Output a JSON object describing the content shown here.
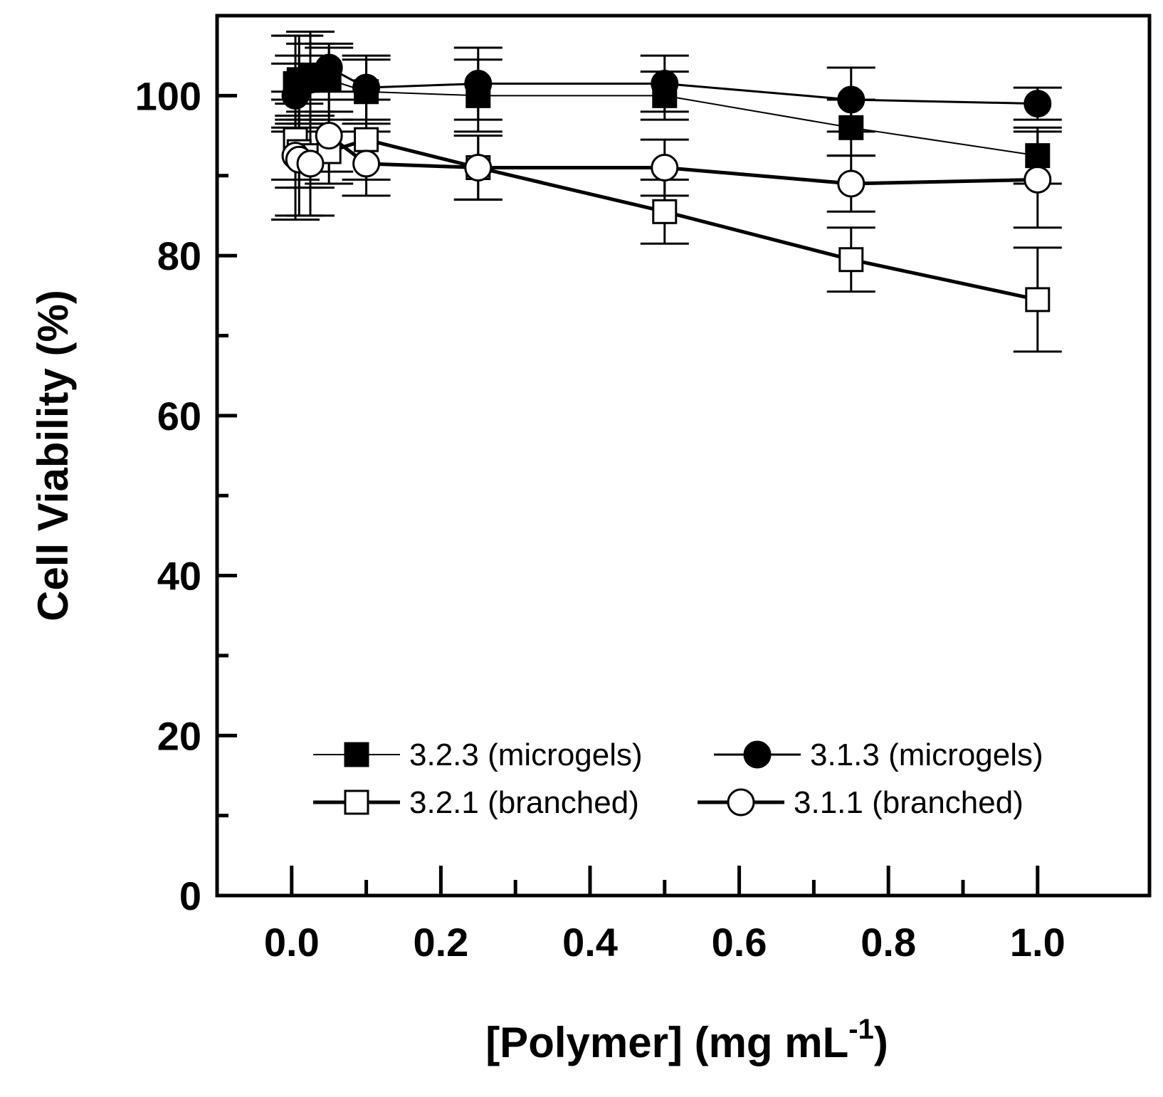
{
  "chart_data": {
    "type": "line",
    "title": "",
    "xlabel": "[Polymer] (mg mL",
    "xlabel_superscript": "-1",
    "xlabel_suffix": ")",
    "ylabel": "Cell Viability (%)",
    "xlim": [
      -0.1,
      1.15
    ],
    "ylim": [
      0,
      110
    ],
    "x_ticks": [
      0.0,
      0.2,
      0.4,
      0.6,
      0.8,
      1.0
    ],
    "x_tick_labels": [
      "0.0",
      "0.2",
      "0.4",
      "0.6",
      "0.8",
      "1.0"
    ],
    "y_ticks": [
      0,
      20,
      40,
      60,
      80,
      100
    ],
    "y_tick_labels": [
      "0",
      "20",
      "40",
      "60",
      "80",
      "100"
    ],
    "grid": false,
    "legend_position": "bottom-center",
    "series": [
      {
        "name": "3.2.3 (microgels)",
        "marker": "filled-square",
        "line": "thin",
        "x": [
          0.005,
          0.01,
          0.025,
          0.05,
          0.1,
          0.25,
          0.5,
          0.75,
          1.0
        ],
        "y": [
          101.5,
          102.0,
          102.5,
          102.0,
          100.5,
          100.0,
          100.0,
          96.0,
          92.5
        ],
        "err": [
          6.0,
          5.5,
          5.5,
          4.0,
          4.0,
          4.5,
          3.0,
          3.5,
          3.5
        ]
      },
      {
        "name": "3.1.3 (microgels)",
        "marker": "filled-circle",
        "line": "medium",
        "x": [
          0.005,
          0.01,
          0.025,
          0.05,
          0.1,
          0.25,
          0.5,
          0.75,
          1.0
        ],
        "y": [
          100.0,
          101.0,
          102.0,
          103.5,
          101.0,
          101.5,
          101.5,
          99.5,
          99.0
        ],
        "err": [
          4.0,
          4.0,
          4.5,
          3.0,
          4.0,
          4.5,
          3.5,
          4.0,
          2.0
        ]
      },
      {
        "name": "3.2.1 (branched)",
        "marker": "open-square",
        "line": "thick",
        "x": [
          0.005,
          0.01,
          0.025,
          0.05,
          0.1,
          0.25,
          0.5,
          0.75,
          1.0
        ],
        "y": [
          94.5,
          93.0,
          92.5,
          93.0,
          94.5,
          91.0,
          85.5,
          79.5,
          74.5
        ],
        "err": [
          5.0,
          4.5,
          4.0,
          4.0,
          5.0,
          4.0,
          4.0,
          4.0,
          6.5
        ]
      },
      {
        "name": "3.1.1 (branched)",
        "marker": "open-circle",
        "line": "thick",
        "x": [
          0.005,
          0.01,
          0.025,
          0.05,
          0.1,
          0.25,
          0.5,
          0.75,
          1.0
        ],
        "y": [
          92.5,
          92.0,
          91.5,
          95.0,
          91.5,
          91.0,
          91.0,
          89.0,
          89.5
        ],
        "err": [
          8.0,
          7.0,
          6.5,
          4.5,
          4.0,
          4.0,
          3.5,
          3.5,
          6.0
        ]
      }
    ]
  }
}
